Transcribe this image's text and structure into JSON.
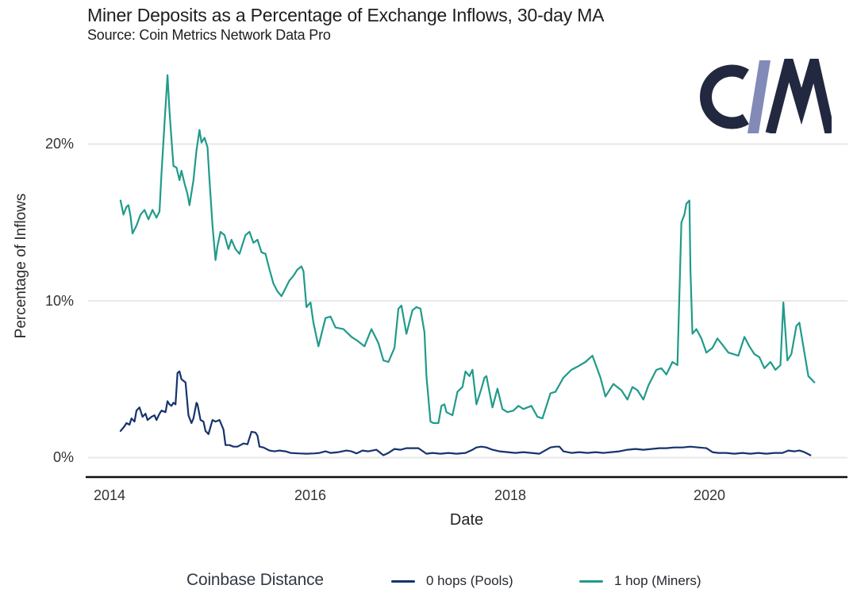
{
  "header": {
    "title": "Miner Deposits as a Percentage of Exchange Inflows, 30-day MA",
    "subtitle": "Source: Coin Metrics Network Data Pro"
  },
  "logo": {
    "name": "Coin Metrics",
    "dark_color": "#22283f",
    "slash_color": "#828ab8"
  },
  "legend": {
    "title": "Coinbase Distance",
    "items": [
      {
        "label": "0 hops (Pools)",
        "color": "#16336d"
      },
      {
        "label": "1 hop (Miners)",
        "color": "#209b8a"
      }
    ]
  },
  "chart_data": {
    "type": "line",
    "title": "Miner Deposits as a Percentage of Exchange Inflows, 30-day MA",
    "subtitle": "Source: Coin Metrics Network Data Pro",
    "xlabel": "Date",
    "ylabel": "Percentage of Inflows",
    "x_ticks": [
      "2014",
      "2016",
      "2018",
      "2020"
    ],
    "x_tick_values": [
      2014,
      2016,
      2018,
      2020
    ],
    "y_ticks": [
      "0%",
      "10%",
      "20%"
    ],
    "y_tick_values": [
      0,
      10,
      20
    ],
    "x_range": [
      2014.05,
      2021.1
    ],
    "ylim_pct": [
      0,
      25
    ],
    "grid": "horizontal",
    "gridline_color": "#e8e8e8",
    "axis_line_color": "#0d0d0d",
    "legend_position": "bottom",
    "legend_title": "Coinbase Distance",
    "series": [
      {
        "name": "0 hops (Pools)",
        "color": "#16336d",
        "points": [
          [
            2014.11,
            1.7
          ],
          [
            2014.15,
            2.0
          ],
          [
            2014.17,
            2.2
          ],
          [
            2014.2,
            2.1
          ],
          [
            2014.22,
            2.5
          ],
          [
            2014.25,
            2.3
          ],
          [
            2014.27,
            3.0
          ],
          [
            2014.3,
            3.2
          ],
          [
            2014.33,
            2.6
          ],
          [
            2014.36,
            2.8
          ],
          [
            2014.38,
            2.4
          ],
          [
            2014.42,
            2.6
          ],
          [
            2014.45,
            2.7
          ],
          [
            2014.47,
            2.4
          ],
          [
            2014.5,
            2.8
          ],
          [
            2014.52,
            3.0
          ],
          [
            2014.56,
            2.9
          ],
          [
            2014.58,
            3.6
          ],
          [
            2014.6,
            3.4
          ],
          [
            2014.62,
            3.3
          ],
          [
            2014.64,
            3.5
          ],
          [
            2014.66,
            3.4
          ],
          [
            2014.68,
            5.4
          ],
          [
            2014.7,
            5.5
          ],
          [
            2014.72,
            5.0
          ],
          [
            2014.74,
            4.9
          ],
          [
            2014.76,
            4.8
          ],
          [
            2014.79,
            2.7
          ],
          [
            2014.82,
            2.2
          ],
          [
            2014.84,
            2.5
          ],
          [
            2014.87,
            3.5
          ],
          [
            2014.88,
            3.4
          ],
          [
            2014.91,
            2.4
          ],
          [
            2014.94,
            2.3
          ],
          [
            2014.96,
            1.7
          ],
          [
            2014.99,
            1.5
          ],
          [
            2015.03,
            2.4
          ],
          [
            2015.06,
            2.3
          ],
          [
            2015.1,
            2.4
          ],
          [
            2015.14,
            1.8
          ],
          [
            2015.16,
            0.8
          ],
          [
            2015.2,
            0.8
          ],
          [
            2015.24,
            0.7
          ],
          [
            2015.28,
            0.7
          ],
          [
            2015.34,
            0.9
          ],
          [
            2015.38,
            0.85
          ],
          [
            2015.42,
            1.65
          ],
          [
            2015.46,
            1.6
          ],
          [
            2015.48,
            1.4
          ],
          [
            2015.5,
            0.7
          ],
          [
            2015.54,
            0.65
          ],
          [
            2015.6,
            0.45
          ],
          [
            2015.65,
            0.4
          ],
          [
            2015.7,
            0.45
          ],
          [
            2015.76,
            0.4
          ],
          [
            2015.81,
            0.3
          ],
          [
            2015.89,
            0.27
          ],
          [
            2015.97,
            0.25
          ],
          [
            2016.05,
            0.27
          ],
          [
            2016.1,
            0.3
          ],
          [
            2016.16,
            0.4
          ],
          [
            2016.21,
            0.3
          ],
          [
            2016.29,
            0.35
          ],
          [
            2016.37,
            0.45
          ],
          [
            2016.42,
            0.4
          ],
          [
            2016.47,
            0.27
          ],
          [
            2016.53,
            0.45
          ],
          [
            2016.59,
            0.4
          ],
          [
            2016.67,
            0.5
          ],
          [
            2016.74,
            0.15
          ],
          [
            2016.79,
            0.3
          ],
          [
            2016.85,
            0.55
          ],
          [
            2016.91,
            0.5
          ],
          [
            2016.97,
            0.6
          ],
          [
            2017.09,
            0.6
          ],
          [
            2017.17,
            0.25
          ],
          [
            2017.23,
            0.3
          ],
          [
            2017.31,
            0.25
          ],
          [
            2017.39,
            0.3
          ],
          [
            2017.47,
            0.25
          ],
          [
            2017.56,
            0.3
          ],
          [
            2017.63,
            0.5
          ],
          [
            2017.67,
            0.65
          ],
          [
            2017.72,
            0.7
          ],
          [
            2017.77,
            0.65
          ],
          [
            2017.83,
            0.5
          ],
          [
            2017.9,
            0.4
          ],
          [
            2017.98,
            0.35
          ],
          [
            2018.06,
            0.3
          ],
          [
            2018.14,
            0.35
          ],
          [
            2018.22,
            0.3
          ],
          [
            2018.3,
            0.25
          ],
          [
            2018.41,
            0.65
          ],
          [
            2018.46,
            0.7
          ],
          [
            2018.5,
            0.7
          ],
          [
            2018.54,
            0.4
          ],
          [
            2018.62,
            0.3
          ],
          [
            2018.7,
            0.35
          ],
          [
            2018.78,
            0.3
          ],
          [
            2018.86,
            0.35
          ],
          [
            2018.94,
            0.3
          ],
          [
            2019.02,
            0.35
          ],
          [
            2019.1,
            0.4
          ],
          [
            2019.18,
            0.5
          ],
          [
            2019.26,
            0.55
          ],
          [
            2019.34,
            0.5
          ],
          [
            2019.42,
            0.55
          ],
          [
            2019.5,
            0.6
          ],
          [
            2019.57,
            0.6
          ],
          [
            2019.65,
            0.65
          ],
          [
            2019.73,
            0.65
          ],
          [
            2019.81,
            0.7
          ],
          [
            2019.89,
            0.65
          ],
          [
            2019.97,
            0.6
          ],
          [
            2020.03,
            0.35
          ],
          [
            2020.09,
            0.3
          ],
          [
            2020.17,
            0.3
          ],
          [
            2020.25,
            0.25
          ],
          [
            2020.33,
            0.3
          ],
          [
            2020.41,
            0.25
          ],
          [
            2020.49,
            0.3
          ],
          [
            2020.57,
            0.25
          ],
          [
            2020.65,
            0.3
          ],
          [
            2020.73,
            0.3
          ],
          [
            2020.79,
            0.45
          ],
          [
            2020.85,
            0.4
          ],
          [
            2020.9,
            0.45
          ],
          [
            2020.95,
            0.35
          ],
          [
            2021.01,
            0.15
          ]
        ]
      },
      {
        "name": "1 hop (Miners)",
        "color": "#209b8a",
        "points": [
          [
            2014.11,
            16.4
          ],
          [
            2014.14,
            15.5
          ],
          [
            2014.17,
            16.0
          ],
          [
            2014.19,
            16.1
          ],
          [
            2014.21,
            15.4
          ],
          [
            2014.23,
            14.3
          ],
          [
            2014.27,
            14.8
          ],
          [
            2014.31,
            15.5
          ],
          [
            2014.35,
            15.8
          ],
          [
            2014.39,
            15.2
          ],
          [
            2014.43,
            15.8
          ],
          [
            2014.47,
            15.3
          ],
          [
            2014.5,
            15.7
          ],
          [
            2014.52,
            18.1
          ],
          [
            2014.55,
            21.3
          ],
          [
            2014.58,
            24.4
          ],
          [
            2014.6,
            22.1
          ],
          [
            2014.62,
            20.3
          ],
          [
            2014.64,
            18.6
          ],
          [
            2014.67,
            18.5
          ],
          [
            2014.7,
            17.7
          ],
          [
            2014.72,
            18.3
          ],
          [
            2014.75,
            17.5
          ],
          [
            2014.78,
            16.8
          ],
          [
            2014.8,
            16.1
          ],
          [
            2014.84,
            17.7
          ],
          [
            2014.87,
            19.6
          ],
          [
            2014.9,
            20.9
          ],
          [
            2014.92,
            20.1
          ],
          [
            2014.95,
            20.4
          ],
          [
            2014.98,
            19.8
          ],
          [
            2015.0,
            17.7
          ],
          [
            2015.03,
            14.8
          ],
          [
            2015.06,
            12.6
          ],
          [
            2015.08,
            13.5
          ],
          [
            2015.11,
            14.4
          ],
          [
            2015.15,
            14.2
          ],
          [
            2015.19,
            13.3
          ],
          [
            2015.22,
            13.9
          ],
          [
            2015.26,
            13.3
          ],
          [
            2015.3,
            13.0
          ],
          [
            2015.36,
            14.2
          ],
          [
            2015.4,
            14.4
          ],
          [
            2015.44,
            13.7
          ],
          [
            2015.48,
            13.9
          ],
          [
            2015.52,
            13.1
          ],
          [
            2015.56,
            13.0
          ],
          [
            2015.6,
            12.0
          ],
          [
            2015.64,
            11.1
          ],
          [
            2015.68,
            10.6
          ],
          [
            2015.72,
            10.3
          ],
          [
            2015.76,
            10.8
          ],
          [
            2015.8,
            11.3
          ],
          [
            2015.84,
            11.6
          ],
          [
            2015.88,
            12.0
          ],
          [
            2015.92,
            12.2
          ],
          [
            2015.94,
            11.9
          ],
          [
            2015.97,
            9.6
          ],
          [
            2016.01,
            9.9
          ],
          [
            2016.04,
            8.6
          ],
          [
            2016.09,
            7.1
          ],
          [
            2016.16,
            8.9
          ],
          [
            2016.21,
            9.0
          ],
          [
            2016.26,
            8.3
          ],
          [
            2016.34,
            8.2
          ],
          [
            2016.42,
            7.7
          ],
          [
            2016.47,
            7.5
          ],
          [
            2016.55,
            7.1
          ],
          [
            2016.62,
            8.2
          ],
          [
            2016.69,
            7.3
          ],
          [
            2016.74,
            6.2
          ],
          [
            2016.79,
            6.1
          ],
          [
            2016.85,
            7.0
          ],
          [
            2016.89,
            9.5
          ],
          [
            2016.92,
            9.7
          ],
          [
            2016.95,
            8.6
          ],
          [
            2016.97,
            7.9
          ],
          [
            2017.03,
            9.4
          ],
          [
            2017.07,
            9.6
          ],
          [
            2017.11,
            9.5
          ],
          [
            2017.15,
            8.0
          ],
          [
            2017.17,
            5.2
          ],
          [
            2017.21,
            2.3
          ],
          [
            2017.24,
            2.2
          ],
          [
            2017.29,
            2.2
          ],
          [
            2017.32,
            3.3
          ],
          [
            2017.35,
            3.4
          ],
          [
            2017.37,
            2.9
          ],
          [
            2017.43,
            2.7
          ],
          [
            2017.48,
            4.2
          ],
          [
            2017.53,
            4.5
          ],
          [
            2017.56,
            5.5
          ],
          [
            2017.6,
            5.2
          ],
          [
            2017.63,
            5.6
          ],
          [
            2017.67,
            3.4
          ],
          [
            2017.72,
            4.4
          ],
          [
            2017.75,
            5.1
          ],
          [
            2017.77,
            5.2
          ],
          [
            2017.83,
            3.2
          ],
          [
            2017.88,
            4.4
          ],
          [
            2017.93,
            3.1
          ],
          [
            2017.98,
            2.9
          ],
          [
            2018.04,
            3.0
          ],
          [
            2018.09,
            3.3
          ],
          [
            2018.14,
            3.1
          ],
          [
            2018.22,
            3.3
          ],
          [
            2018.28,
            2.6
          ],
          [
            2018.33,
            2.5
          ],
          [
            2018.41,
            4.1
          ],
          [
            2018.46,
            4.2
          ],
          [
            2018.54,
            5.1
          ],
          [
            2018.62,
            5.6
          ],
          [
            2018.68,
            5.8
          ],
          [
            2018.76,
            6.1
          ],
          [
            2018.83,
            6.5
          ],
          [
            2018.91,
            5.1
          ],
          [
            2018.96,
            3.9
          ],
          [
            2019.04,
            4.7
          ],
          [
            2019.12,
            4.3
          ],
          [
            2019.18,
            3.7
          ],
          [
            2019.23,
            4.5
          ],
          [
            2019.28,
            4.3
          ],
          [
            2019.34,
            3.7
          ],
          [
            2019.39,
            4.6
          ],
          [
            2019.47,
            5.6
          ],
          [
            2019.52,
            5.7
          ],
          [
            2019.57,
            5.3
          ],
          [
            2019.63,
            6.1
          ],
          [
            2019.68,
            5.9
          ],
          [
            2019.72,
            15.0
          ],
          [
            2019.75,
            15.5
          ],
          [
            2019.77,
            16.2
          ],
          [
            2019.8,
            16.4
          ],
          [
            2019.81,
            12.0
          ],
          [
            2019.83,
            7.9
          ],
          [
            2019.87,
            8.2
          ],
          [
            2019.92,
            7.6
          ],
          [
            2019.97,
            6.7
          ],
          [
            2020.03,
            7.0
          ],
          [
            2020.08,
            7.6
          ],
          [
            2020.13,
            7.2
          ],
          [
            2020.19,
            6.7
          ],
          [
            2020.24,
            6.6
          ],
          [
            2020.29,
            6.5
          ],
          [
            2020.35,
            7.7
          ],
          [
            2020.4,
            7.1
          ],
          [
            2020.45,
            6.6
          ],
          [
            2020.5,
            6.4
          ],
          [
            2020.55,
            5.7
          ],
          [
            2020.61,
            6.1
          ],
          [
            2020.66,
            5.6
          ],
          [
            2020.71,
            5.9
          ],
          [
            2020.74,
            9.9
          ],
          [
            2020.78,
            6.2
          ],
          [
            2020.82,
            6.6
          ],
          [
            2020.87,
            8.4
          ],
          [
            2020.9,
            8.6
          ],
          [
            2020.95,
            6.7
          ],
          [
            2020.99,
            5.2
          ],
          [
            2021.05,
            4.8
          ]
        ]
      }
    ]
  }
}
